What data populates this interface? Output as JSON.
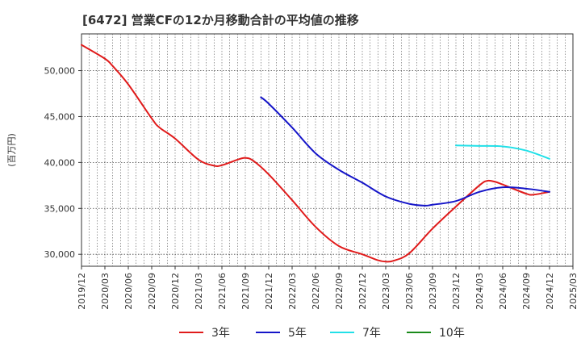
{
  "chart_data": {
    "type": "line",
    "title": "[6472]  営業CFの12か月移動合計の平均値の推移",
    "ylabel": "(百万円)",
    "xlabel": "",
    "x_ticks": [
      "2019/12",
      "2020/03",
      "2020/06",
      "2020/09",
      "2020/12",
      "2021/03",
      "2021/06",
      "2021/09",
      "2021/12",
      "2022/03",
      "2022/06",
      "2022/09",
      "2022/12",
      "2023/03",
      "2023/06",
      "2023/09",
      "2023/12",
      "2024/03",
      "2024/06",
      "2024/09",
      "2024/12",
      "2025/03"
    ],
    "y_ticks": [
      30000,
      35000,
      40000,
      45000,
      50000
    ],
    "y_tick_labels": [
      "30,000",
      "35,000",
      "40,000",
      "45,000",
      "50,000"
    ],
    "ylim": [
      28700,
      54000
    ],
    "grid": true,
    "legend_position": "bottom",
    "series": [
      {
        "name": "3年",
        "color": "#e01b1b",
        "x": [
          "2019/12",
          "2020/03",
          "2020/04",
          "2020/06",
          "2020/09",
          "2020/10",
          "2020/12",
          "2021/03",
          "2021/05",
          "2021/06",
          "2021/08",
          "2021/09",
          "2021/10",
          "2021/12",
          "2022/03",
          "2022/06",
          "2022/09",
          "2022/12",
          "2023/02",
          "2023/03",
          "2023/04",
          "2023/06",
          "2023/09",
          "2023/12",
          "2024/03",
          "2024/04",
          "2024/05",
          "2024/06",
          "2024/09",
          "2024/10",
          "2024/12"
        ],
        "values": [
          52800,
          51300,
          50500,
          48500,
          44800,
          43800,
          42600,
          40300,
          39650,
          39700,
          40300,
          40500,
          40200,
          38700,
          35900,
          33000,
          30900,
          30000,
          29350,
          29200,
          29300,
          30100,
          32800,
          35200,
          37500,
          38000,
          37900,
          37600,
          36600,
          36500,
          36800
        ]
      },
      {
        "name": "5年",
        "color": "#1515c8",
        "x": [
          "2021/11",
          "2021/12",
          "2022/03",
          "2022/06",
          "2022/09",
          "2022/12",
          "2023/03",
          "2023/06",
          "2023/08",
          "2023/09",
          "2023/12",
          "2024/03",
          "2024/06",
          "2024/09",
          "2024/12"
        ],
        "values": [
          47100,
          46400,
          43800,
          41000,
          39200,
          37800,
          36300,
          35500,
          35300,
          35400,
          35800,
          36800,
          37300,
          37150,
          36800
        ]
      },
      {
        "name": "7年",
        "color": "#22e0e8",
        "x": [
          "2023/12",
          "2024/03",
          "2024/06",
          "2024/09",
          "2024/12"
        ],
        "values": [
          41850,
          41800,
          41750,
          41300,
          40400
        ]
      },
      {
        "name": "10年",
        "color": "#1a8a1a",
        "x": [],
        "values": []
      }
    ]
  }
}
